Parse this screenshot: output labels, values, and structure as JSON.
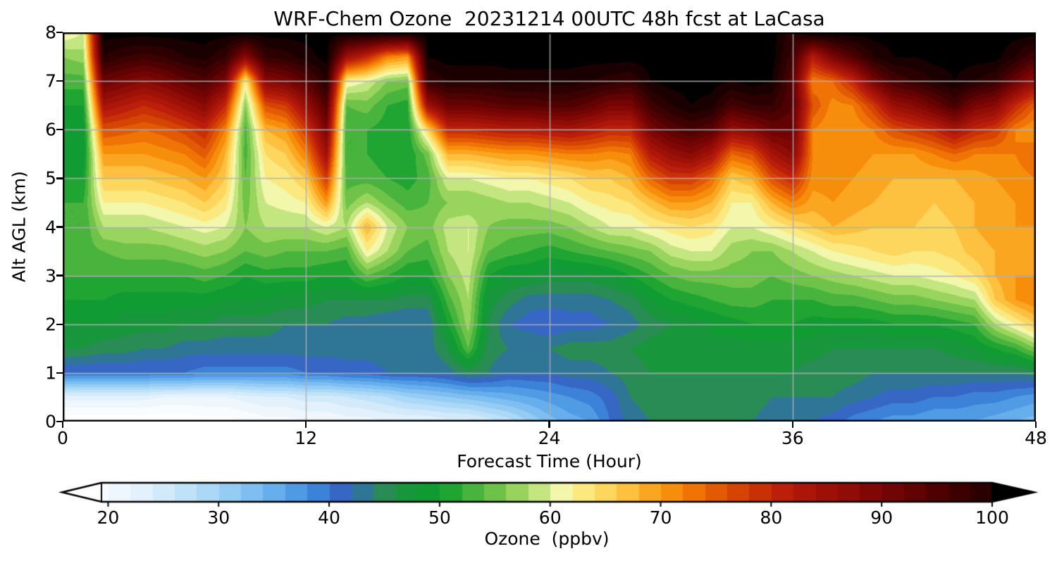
{
  "figure": {
    "title": "WRF-Chem Ozone  20231214 00UTC 48h fcst at LaCasa"
  },
  "chart_data": {
    "type": "heatmap",
    "subtype": "filled-contour",
    "title": "WRF-Chem Ozone  20231214 00UTC 48h fcst at LaCasa",
    "xlabel": "Forecast Time (Hour)",
    "ylabel": "Alt AGL (km)",
    "colorbar_label": "Ozone  (ppbv)",
    "x_range": [
      0,
      48
    ],
    "y_range": [
      0,
      8
    ],
    "xticks": [
      0,
      12,
      24,
      36,
      48
    ],
    "yticks": [
      0,
      1,
      2,
      3,
      4,
      5,
      6,
      7,
      8
    ],
    "colorbar_ticks": [
      20,
      30,
      40,
      50,
      60,
      70,
      80,
      90,
      100
    ],
    "contour_step": 2,
    "colorbar_body_range": [
      19.4,
      100
    ],
    "extend": "both",
    "grid": true,
    "grid_color": "#b0b0b0",
    "under_color": "#ffffff",
    "over_color": "#000000",
    "colormap_stops": [
      [
        17,
        "#ffffff"
      ],
      [
        20,
        "#f5fafe"
      ],
      [
        24,
        "#dceefb"
      ],
      [
        28,
        "#b6def8"
      ],
      [
        32,
        "#8ac6f3"
      ],
      [
        36,
        "#5aa7ea"
      ],
      [
        39,
        "#3d82d9"
      ],
      [
        41,
        "#3667c5"
      ],
      [
        43,
        "#2f7596"
      ],
      [
        45,
        "#2a8c55"
      ],
      [
        47,
        "#18963c"
      ],
      [
        50,
        "#0c9e2e"
      ],
      [
        53,
        "#48b43d"
      ],
      [
        56,
        "#83ca4f"
      ],
      [
        58,
        "#afdd6f"
      ],
      [
        60,
        "#d9ee93"
      ],
      [
        61,
        "#f2f7ab"
      ],
      [
        63,
        "#fbe980"
      ],
      [
        65,
        "#fdd65e"
      ],
      [
        67,
        "#fdc03f"
      ],
      [
        69,
        "#fba620"
      ],
      [
        71,
        "#f78e0b"
      ],
      [
        73,
        "#ef7305"
      ],
      [
        75,
        "#e25a03"
      ],
      [
        77,
        "#d54402"
      ],
      [
        79,
        "#c93006"
      ],
      [
        81,
        "#bb1e0a"
      ],
      [
        84,
        "#a41308"
      ],
      [
        87,
        "#900c06"
      ],
      [
        90,
        "#7a0505"
      ],
      [
        93,
        "#610203"
      ],
      [
        96,
        "#460101"
      ],
      [
        99,
        "#2c0000"
      ],
      [
        102,
        "#130000"
      ],
      [
        103,
        "#000000"
      ]
    ],
    "x_hours": [
      0,
      1,
      2,
      3,
      4,
      5,
      6,
      7,
      8,
      9,
      10,
      11,
      12,
      13,
      14,
      15,
      16,
      17,
      18,
      19,
      20,
      21,
      22,
      23,
      24,
      25,
      26,
      27,
      28,
      29,
      30,
      31,
      32,
      33,
      34,
      35,
      36,
      37,
      38,
      39,
      40,
      41,
      42,
      43,
      44,
      45,
      46,
      47,
      48
    ],
    "alt_km": [
      0,
      0.5,
      1,
      1.5,
      2,
      2.5,
      3,
      3.5,
      4,
      4.5,
      5,
      5.5,
      6,
      6.5,
      7,
      7.5,
      8
    ],
    "values": [
      [
        16,
        16,
        16,
        16,
        16,
        16,
        16,
        17,
        17,
        18,
        19,
        19,
        20,
        20,
        21,
        21,
        22,
        22,
        22,
        23,
        23,
        25,
        27,
        30,
        33,
        35,
        36,
        40,
        43,
        44,
        45,
        45,
        45,
        44,
        44,
        43,
        42,
        42,
        41,
        39,
        38,
        37,
        37,
        36,
        36,
        36,
        35,
        34,
        33
      ],
      [
        23,
        23,
        23,
        23,
        23,
        22,
        22,
        22,
        22,
        23,
        24,
        24,
        25,
        25,
        26,
        27,
        28,
        30,
        31,
        32,
        33,
        34,
        35,
        36,
        37,
        38,
        39,
        41,
        44,
        45,
        45,
        45,
        45,
        45,
        45,
        44,
        44,
        44,
        44,
        43,
        42,
        41,
        41,
        40,
        40,
        39,
        39,
        38,
        37
      ],
      [
        40,
        40,
        40,
        40,
        40,
        40,
        40,
        39,
        39,
        39,
        39,
        39,
        40,
        40,
        41,
        41,
        42,
        42,
        42,
        43,
        45,
        44,
        42,
        42,
        42,
        43,
        43,
        44,
        45,
        46,
        46,
        46,
        46,
        46,
        46,
        46,
        46,
        45,
        45,
        45,
        44,
        44,
        44,
        44,
        44,
        44,
        44,
        44,
        45
      ],
      [
        46,
        46,
        45,
        45,
        44,
        44,
        43,
        43,
        43,
        43,
        43,
        43,
        43,
        43,
        43,
        43,
        43,
        43,
        43,
        46,
        54,
        45,
        44,
        44,
        44,
        45,
        45,
        45,
        46,
        47,
        47,
        47,
        48,
        47,
        47,
        47,
        47,
        47,
        46,
        46,
        46,
        46,
        46,
        46,
        47,
        48,
        50,
        52,
        56
      ],
      [
        48,
        48,
        48,
        47,
        47,
        47,
        46,
        46,
        45,
        45,
        45,
        44,
        44,
        44,
        43,
        43,
        42,
        42,
        42,
        50,
        57,
        46,
        42,
        41,
        40,
        41,
        41,
        42,
        43,
        45,
        46,
        47,
        48,
        49,
        50,
        50,
        50,
        49,
        49,
        49,
        49,
        50,
        50,
        50,
        51,
        52,
        58,
        62,
        66
      ],
      [
        50,
        50,
        50,
        49,
        49,
        49,
        49,
        49,
        48,
        48,
        48,
        47,
        47,
        46,
        46,
        46,
        46,
        45,
        45,
        53,
        58,
        47,
        45,
        43,
        43,
        43,
        43,
        44,
        45,
        48,
        50,
        51,
        52,
        53,
        53,
        52,
        52,
        52,
        53,
        53,
        54,
        55,
        55,
        56,
        57,
        58,
        66,
        70,
        72
      ],
      [
        52,
        52,
        52,
        52,
        52,
        52,
        52,
        53,
        52,
        50,
        51,
        51,
        51,
        50,
        50,
        54,
        52,
        50,
        50,
        56,
        59,
        50,
        48,
        48,
        47,
        47,
        47,
        48,
        50,
        52,
        54,
        55,
        55,
        55,
        55,
        54,
        55,
        56,
        57,
        58,
        59,
        60,
        60,
        61,
        62,
        64,
        68,
        70,
        70
      ],
      [
        53,
        53,
        54,
        55,
        55,
        55,
        56,
        57,
        56,
        54,
        55,
        54,
        54,
        54,
        53,
        62,
        58,
        54,
        53,
        58,
        60,
        54,
        53,
        52,
        51,
        52,
        53,
        54,
        55,
        56,
        59,
        60,
        60,
        57,
        56,
        56,
        58,
        60,
        62,
        63,
        64,
        65,
        64,
        64,
        65,
        67,
        68,
        69,
        70
      ],
      [
        52,
        52,
        58,
        58,
        58,
        59,
        60,
        61,
        60,
        56,
        58,
        58,
        58,
        60,
        58,
        68,
        60,
        56,
        55,
        59,
        60,
        56,
        55,
        55,
        55,
        56,
        58,
        60,
        60,
        62,
        63,
        64,
        63,
        60,
        60,
        62,
        64,
        66,
        68,
        67,
        66,
        66,
        66,
        65,
        66,
        68,
        69,
        70,
        70
      ],
      [
        52,
        52,
        62,
        62,
        62,
        63,
        64,
        66,
        63,
        55,
        60,
        61,
        62,
        70,
        55,
        58,
        55,
        53,
        54,
        56,
        56,
        57,
        58,
        58,
        59,
        60,
        62,
        63,
        64,
        67,
        70,
        70,
        68,
        62,
        62,
        68,
        72,
        69,
        70,
        69,
        68,
        67,
        67,
        66,
        67,
        68,
        69,
        70,
        70
      ],
      [
        50,
        50,
        66,
        66,
        66,
        67,
        68,
        70,
        66,
        54,
        62,
        63,
        66,
        78,
        53,
        53,
        52,
        51,
        53,
        60,
        60,
        61,
        62,
        62,
        63,
        64,
        66,
        66,
        68,
        74,
        78,
        78,
        74,
        66,
        68,
        76,
        80,
        71,
        71,
        70,
        69,
        68,
        68,
        68,
        68,
        69,
        70,
        71,
        72
      ],
      [
        48,
        48,
        70,
        70,
        70,
        71,
        72,
        75,
        68,
        53,
        64,
        66,
        72,
        85,
        52,
        52,
        51,
        50,
        55,
        68,
        68,
        69,
        70,
        70,
        71,
        72,
        72,
        71,
        72,
        82,
        86,
        88,
        84,
        74,
        76,
        84,
        88,
        72,
        72,
        71,
        70,
        70,
        70,
        72,
        74,
        72,
        72,
        72,
        74
      ],
      [
        48,
        48,
        76,
        75,
        74,
        75,
        77,
        80,
        72,
        53,
        68,
        70,
        78,
        90,
        52,
        52,
        51,
        50,
        65,
        80,
        80,
        81,
        82,
        82,
        83,
        84,
        82,
        80,
        80,
        90,
        94,
        96,
        94,
        86,
        88,
        92,
        92,
        72,
        70,
        70,
        72,
        76,
        78,
        80,
        84,
        80,
        78,
        72,
        70
      ],
      [
        50,
        50,
        84,
        82,
        80,
        82,
        85,
        88,
        80,
        56,
        76,
        78,
        86,
        95,
        54,
        55,
        52,
        51,
        85,
        92,
        92,
        93,
        94,
        94,
        95,
        95,
        93,
        90,
        90,
        97,
        100,
        102,
        101,
        96,
        98,
        98,
        94,
        76,
        71,
        72,
        78,
        86,
        88,
        92,
        96,
        90,
        88,
        80,
        74
      ],
      [
        53,
        53,
        92,
        90,
        88,
        90,
        93,
        95,
        90,
        62,
        88,
        90,
        94,
        100,
        62,
        60,
        56,
        55,
        98,
        100,
        100,
        100,
        101,
        101,
        101,
        101,
        100,
        99,
        98,
        102,
        103,
        103,
        103,
        102,
        103,
        102,
        94,
        72,
        74,
        80,
        90,
        96,
        98,
        100,
        102,
        100,
        98,
        92,
        86
      ],
      [
        56,
        57,
        100,
        98,
        97,
        98,
        100,
        101,
        98,
        88,
        98,
        99,
        101,
        103,
        85,
        80,
        72,
        70,
        102,
        103,
        103,
        103,
        103,
        103,
        103,
        103,
        103,
        103,
        103,
        103,
        103,
        103,
        103,
        103,
        103,
        103,
        97,
        82,
        90,
        95,
        100,
        102,
        102,
        103,
        103,
        103,
        103,
        100,
        96
      ],
      [
        62,
        60,
        103,
        103,
        103,
        103,
        103,
        103,
        103,
        103,
        103,
        103,
        103,
        103,
        103,
        103,
        103,
        103,
        103,
        103,
        103,
        103,
        103,
        103,
        103,
        103,
        103,
        103,
        103,
        103,
        103,
        103,
        103,
        103,
        103,
        103,
        99,
        103,
        103,
        103,
        103,
        103,
        103,
        103,
        103,
        103,
        103,
        103,
        103
      ]
    ]
  }
}
